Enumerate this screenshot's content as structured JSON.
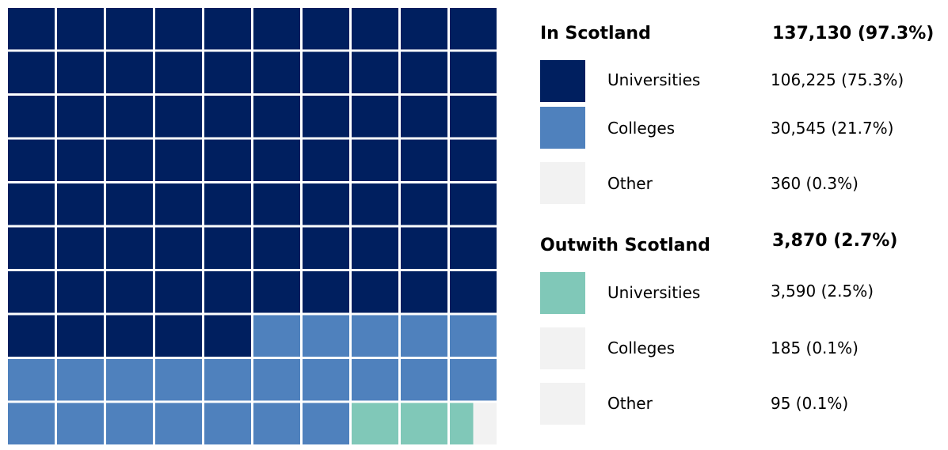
{
  "chart_data": {
    "type": "waffle",
    "title": "",
    "grid": {
      "rows": 10,
      "cols": 10
    },
    "groups": [
      {
        "name": "In Scotland",
        "total_label": "137,130 (97.3%)",
        "items": [
          {
            "name": "Universities",
            "value": 106225,
            "percent": 75.3,
            "value_label": "106,225 (75.3%)",
            "color": "#001f5f"
          },
          {
            "name": "Colleges",
            "value": 30545,
            "percent": 21.7,
            "value_label": "30,545 (21.7%)",
            "color": "#4f81bd"
          },
          {
            "name": "Other",
            "value": 360,
            "percent": 0.3,
            "value_label": "360 (0.3%)",
            "color": "#f2f2f2"
          }
        ]
      },
      {
        "name": "Outwith Scotland",
        "total_label": "3,870 (2.7%)",
        "items": [
          {
            "name": "Universities",
            "value": 3590,
            "percent": 2.5,
            "value_label": "3,590 (2.5%)",
            "color": "#80c8b8"
          },
          {
            "name": "Colleges",
            "value": 185,
            "percent": 0.1,
            "value_label": "185 (0.1%)",
            "color": "#f2f2f2"
          },
          {
            "name": "Other",
            "value": 95,
            "percent": 0.1,
            "value_label": "95 (0.1%)",
            "color": "#f2f2f2"
          }
        ]
      }
    ],
    "cells": {
      "dark_navy_squares": 75,
      "blue_squares": 22,
      "teal_squares": 2.5,
      "light_grey_squares": 0.5
    }
  }
}
